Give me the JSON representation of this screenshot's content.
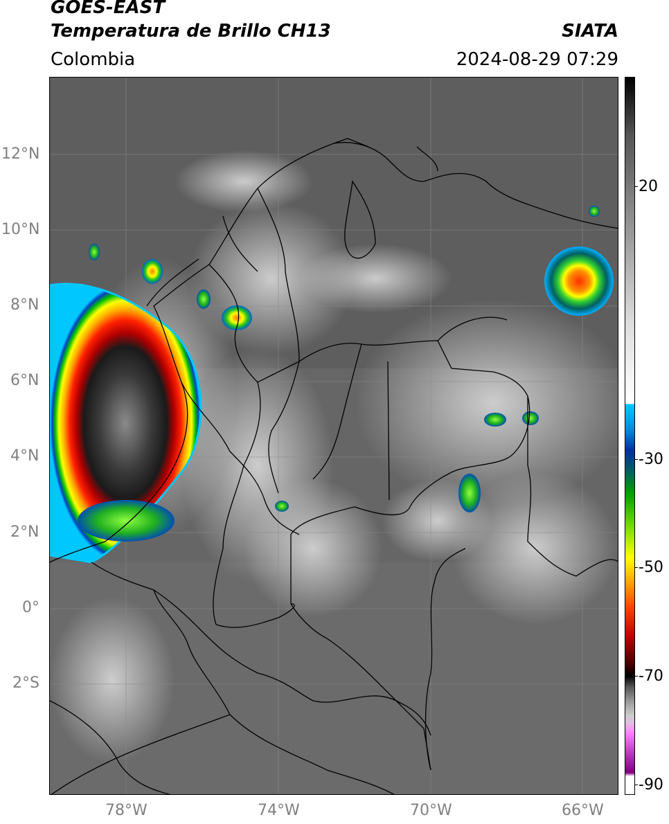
{
  "header": {
    "satellite": "GOES-EAST",
    "product": "Temperatura de Brillo CH13",
    "region": "Colombia",
    "agency": "SIATA",
    "datetime": "2024-08-29 07:29"
  },
  "map": {
    "lon_range": [
      -80,
      -65
    ],
    "lat_range": [
      -5,
      14
    ],
    "lat_labels": [
      "12°N",
      "10°N",
      "8°N",
      "6°N",
      "4°N",
      "2°N",
      "0°",
      "2°S"
    ],
    "lon_labels": [
      "78°W",
      "74°W",
      "70°W",
      "66°W"
    ]
  },
  "colorbar": {
    "labels": [
      "20",
      "-30",
      "-50",
      "-70",
      "-90"
    ],
    "label_values": [
      20,
      -30,
      -50,
      -70,
      -90
    ]
  }
}
